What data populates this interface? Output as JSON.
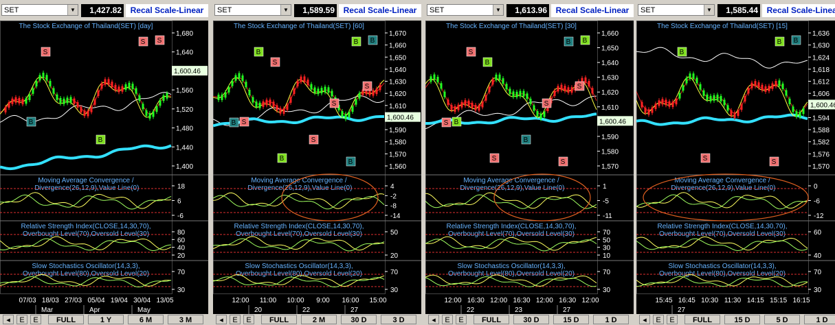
{
  "panels": [
    {
      "symbol": "SET",
      "price": "1,427.82",
      "scale_button": "Recal Scale-Linear",
      "title": "The Stock Exchange of Thailand(SET) [day]",
      "price_ticks": [
        "1,680",
        "1,640",
        "1,600",
        "1,560",
        "1,520",
        "1,480",
        "1,440",
        "1,400"
      ],
      "last_price": "1,600.46",
      "signals": [
        "S",
        "S",
        "S",
        "B",
        "B"
      ],
      "macd_label": "Moving Average Convergence / Divergence(26,12,9),Value Line(0)",
      "macd_ticks": [
        "18",
        "6",
        "-6"
      ],
      "rsi_label": "Relative Strength Index(CLOSE,14,30,70),Overbought Level(70),Oversold Level(30)",
      "rsi_ticks": [
        "80",
        "60",
        "40",
        "20"
      ],
      "stoch_label": "Slow Stochastics Oscillator(14,3,3),Overbought Level(80),Oversold Level(20)",
      "stoch_ticks": [
        "70",
        "30"
      ],
      "x_labels": [
        "07/03",
        "18/03",
        "27/03",
        "05/04",
        "19/04",
        "30/04",
        "13/05"
      ],
      "x_labels_2": [
        "Mar",
        "Apr",
        "May"
      ],
      "toolbar": [
        "FULL",
        "1 Y",
        "6 M",
        "3 M"
      ]
    },
    {
      "symbol": "SET",
      "price": "1,589.59",
      "scale_button": "Recal Scale-Linear",
      "title": "The Stock Exchange of Thailand(SET) [60]",
      "price_ticks": [
        "1,670",
        "1,660",
        "1,650",
        "1,640",
        "1,630",
        "1,620",
        "1,610",
        "1,600",
        "1,590",
        "1,580",
        "1,570",
        "1,560"
      ],
      "last_price": "1,600.46",
      "signals": [
        "S",
        "S",
        "S",
        "S",
        "S",
        "B",
        "B",
        "B",
        "B",
        "B",
        "B"
      ],
      "macd_label": "Moving Average Convergence / Divergence(26,12,9),Value Line(0)",
      "macd_ticks": [
        "4",
        "-2",
        "-8",
        "-14"
      ],
      "rsi_label": "Relative Strength Index(CLOSE,14,30,70),Overbought Level(70),Oversold Level(30)",
      "rsi_ticks": [
        "50",
        "20"
      ],
      "stoch_label": "Slow Stochastics Oscillator(14,3,3),Overbought Level(80),Oversold Level(20)",
      "stoch_ticks": [
        "70",
        "30"
      ],
      "x_labels": [
        "12:00",
        "11:00",
        "10:00",
        "9:00",
        "16:00",
        "15:00"
      ],
      "x_labels_2": [
        "20",
        "22",
        "27"
      ],
      "toolbar": [
        "FULL",
        "2 M",
        "30 D",
        "3 D"
      ]
    },
    {
      "symbol": "SET",
      "price": "1,613.96",
      "scale_button": "Recal Scale-Linear",
      "title": "The Stock Exchange of Thailand(SET) [30]",
      "price_ticks": [
        "1,660",
        "1,650",
        "1,640",
        "1,630",
        "1,620",
        "1,610",
        "1,600",
        "1,590",
        "1,580",
        "1,570"
      ],
      "last_price": "1,600.46",
      "signals": [
        "S",
        "S",
        "S",
        "S",
        "S",
        "S",
        "B",
        "B",
        "B",
        "B",
        "B"
      ],
      "macd_label": "Moving Average Convergence / Divergence(26,12,9),Value Line(0)",
      "macd_ticks": [
        "1",
        "-5",
        "-11"
      ],
      "rsi_label": "Relative Strength Index(CLOSE,14,30,70),Overbought Level(70),Oversold Level(30)",
      "rsi_ticks": [
        "70",
        "50",
        "30",
        "10"
      ],
      "stoch_label": "Slow Stochastics Oscillator(14,3,3),Overbought Level(80),Oversold Level(20)",
      "stoch_ticks": [
        "70",
        "30"
      ],
      "x_labels": [
        "12:00",
        "16:30",
        "12:00",
        "16:30",
        "12:00",
        "16:30",
        "12:00"
      ],
      "x_labels_2": [
        "22",
        "23",
        "27"
      ],
      "toolbar": [
        "FULL",
        "30 D",
        "15 D",
        "1 D"
      ]
    },
    {
      "symbol": "SET",
      "price": "1,585.44",
      "scale_button": "Recal Scale-Linear",
      "title": "The Stock Exchange of Thailand(SET) [15]",
      "price_ticks": [
        "1,636",
        "1,630",
        "1,624",
        "1,618",
        "1,612",
        "1,606",
        "1,600",
        "1,594",
        "1,588",
        "1,582",
        "1,576",
        "1,570"
      ],
      "last_price": "1,600.46",
      "signals": [
        "S",
        "S",
        "B",
        "B",
        "B"
      ],
      "macd_label": "Moving Average Convergence / Divergence(26,12,9),Value Line(0)",
      "macd_ticks": [
        "0",
        "-6",
        "-12"
      ],
      "rsi_label": "Relative Strength Index(CLOSE,14,30,70),Overbought Level(70),Oversold Level(30)",
      "rsi_ticks": [
        "60",
        "40"
      ],
      "stoch_label": "Slow Stochastics Oscillator(14,3,3),Overbought Level(80),Oversold Level(20)",
      "stoch_ticks": [
        "70",
        "30"
      ],
      "x_labels": [
        "15:45",
        "16:45",
        "10:30",
        "11:30",
        "14:15",
        "15:15",
        "16:15"
      ],
      "x_labels_2": [
        "27"
      ],
      "toolbar": [
        "FULL",
        "15 D",
        "5 D",
        "1 D"
      ]
    }
  ]
}
